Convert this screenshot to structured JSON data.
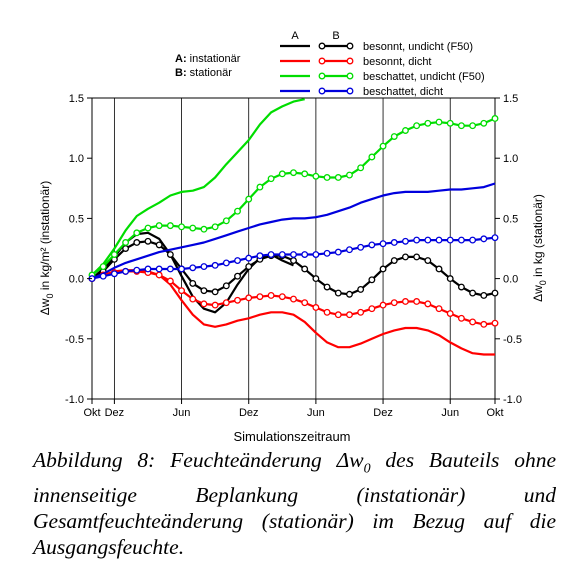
{
  "chart_data": {
    "type": "line",
    "xlabel": "Simulationszeitraum",
    "ylabel_left": "Δw",
    "ylabel_left_sub": "0",
    "ylabel_left_rest": " in kg/m² (instationär)",
    "ylabel_right": "Δw",
    "ylabel_right_sub": "0",
    "ylabel_right_rest": " in kg (stationär)",
    "x_ticks": [
      {
        "label": "Okt",
        "x": 0
      },
      {
        "label": "Dez",
        "x": 2
      },
      {
        "label": "Jun",
        "x": 8
      },
      {
        "label": "Dez",
        "x": 14
      },
      {
        "label": "Jun",
        "x": 20
      },
      {
        "label": "Dez",
        "x": 26
      },
      {
        "label": "Jun",
        "x": 32
      },
      {
        "label": "Okt",
        "x": 36
      }
    ],
    "xlim": [
      0,
      36
    ],
    "ylim": [
      -1.0,
      1.5
    ],
    "y_ticks": [
      "-1.0",
      "-0.5",
      "0.0",
      "0.5",
      "1.0",
      "1.5"
    ],
    "legend": {
      "header_a": "A",
      "header_b": "B",
      "key_a": "A:",
      "key_a_text": " instationär",
      "key_b": "B:",
      "key_b_text": " stationär",
      "entries": [
        {
          "label": "besonnt, undicht (F50)",
          "color": "#000000"
        },
        {
          "label": "besonnt, dicht",
          "color": "#ff0000"
        },
        {
          "label": "beschattet, undicht (F50)",
          "color": "#00dd00"
        },
        {
          "label": "beschattet, dicht",
          "color": "#0000dd"
        }
      ]
    },
    "series": [
      {
        "key": "A-besonnt-undicht",
        "marker": "none",
        "color": "#000000",
        "x": [
          0,
          1,
          2,
          3,
          4,
          5,
          6,
          7,
          8,
          9,
          10,
          11,
          12,
          13,
          14,
          15,
          16,
          17,
          18
        ],
        "y": [
          0.0,
          0.08,
          0.18,
          0.3,
          0.37,
          0.38,
          0.33,
          0.2,
          0.02,
          -0.15,
          -0.25,
          -0.28,
          -0.2,
          -0.05,
          0.08,
          0.17,
          0.2,
          0.15,
          0.11
        ]
      },
      {
        "key": "B-besonnt-undicht",
        "marker": "circle",
        "color": "#000000",
        "x": [
          0,
          1,
          2,
          3,
          4,
          5,
          6,
          7,
          8,
          9,
          10,
          11,
          12,
          13,
          14,
          15,
          16,
          17,
          18,
          19,
          20,
          21,
          22,
          23,
          24,
          25,
          26,
          27,
          28,
          29,
          30,
          31,
          32,
          33,
          34,
          35,
          36
        ],
        "y": [
          0.0,
          0.06,
          0.16,
          0.25,
          0.3,
          0.31,
          0.28,
          0.2,
          0.08,
          -0.04,
          -0.1,
          -0.11,
          -0.06,
          0.02,
          0.1,
          0.16,
          0.19,
          0.19,
          0.15,
          0.08,
          0.0,
          -0.07,
          -0.12,
          -0.13,
          -0.09,
          -0.01,
          0.08,
          0.15,
          0.18,
          0.18,
          0.15,
          0.08,
          0.0,
          -0.07,
          -0.12,
          -0.14,
          -0.12
        ]
      },
      {
        "key": "A-besonnt-dicht",
        "marker": "none",
        "color": "#ff0000",
        "x": [
          0,
          1,
          2,
          3,
          4,
          5,
          6,
          7,
          8,
          9,
          10,
          11,
          12,
          13,
          14,
          15,
          16,
          17,
          18,
          19,
          20,
          21,
          22,
          23,
          24,
          25,
          26,
          27,
          28,
          29,
          30,
          31,
          32,
          33,
          34,
          35,
          36
        ],
        "y": [
          0.0,
          0.03,
          0.06,
          0.07,
          0.07,
          0.06,
          0.03,
          -0.05,
          -0.18,
          -0.3,
          -0.38,
          -0.4,
          -0.38,
          -0.35,
          -0.33,
          -0.3,
          -0.28,
          -0.28,
          -0.3,
          -0.36,
          -0.45,
          -0.53,
          -0.57,
          -0.57,
          -0.54,
          -0.5,
          -0.46,
          -0.43,
          -0.41,
          -0.41,
          -0.43,
          -0.47,
          -0.53,
          -0.58,
          -0.62,
          -0.63,
          -0.63
        ]
      },
      {
        "key": "B-besonnt-dicht",
        "marker": "circle",
        "color": "#ff0000",
        "x": [
          0,
          1,
          2,
          3,
          4,
          5,
          6,
          7,
          8,
          9,
          10,
          11,
          12,
          13,
          14,
          15,
          16,
          17,
          18,
          19,
          20,
          21,
          22,
          23,
          24,
          25,
          26,
          27,
          28,
          29,
          30,
          31,
          32,
          33,
          34,
          35,
          36
        ],
        "y": [
          0.0,
          0.03,
          0.05,
          0.06,
          0.06,
          0.05,
          0.03,
          -0.02,
          -0.1,
          -0.17,
          -0.21,
          -0.22,
          -0.2,
          -0.18,
          -0.16,
          -0.15,
          -0.14,
          -0.15,
          -0.17,
          -0.2,
          -0.24,
          -0.28,
          -0.3,
          -0.3,
          -0.28,
          -0.25,
          -0.22,
          -0.2,
          -0.19,
          -0.19,
          -0.21,
          -0.25,
          -0.29,
          -0.33,
          -0.36,
          -0.38,
          -0.37
        ]
      },
      {
        "key": "A-beschattet-undicht",
        "marker": "none",
        "color": "#00dd00",
        "x": [
          0,
          1,
          2,
          3,
          4,
          5,
          6,
          7,
          8,
          9,
          10,
          11,
          12,
          13,
          14,
          15,
          16,
          17,
          18,
          19
        ],
        "y": [
          0.03,
          0.12,
          0.25,
          0.4,
          0.52,
          0.58,
          0.63,
          0.69,
          0.72,
          0.73,
          0.76,
          0.84,
          0.95,
          1.05,
          1.15,
          1.28,
          1.38,
          1.43,
          1.47,
          1.49
        ]
      },
      {
        "key": "B-beschattet-undicht",
        "marker": "circle",
        "color": "#00dd00",
        "x": [
          0,
          1,
          2,
          3,
          4,
          5,
          6,
          7,
          8,
          9,
          10,
          11,
          12,
          13,
          14,
          15,
          16,
          17,
          18,
          19,
          20,
          21,
          22,
          23,
          24,
          25,
          26,
          27,
          28,
          29,
          30,
          31,
          32,
          33,
          34,
          35,
          36
        ],
        "y": [
          0.03,
          0.1,
          0.2,
          0.3,
          0.38,
          0.42,
          0.44,
          0.44,
          0.43,
          0.42,
          0.41,
          0.43,
          0.48,
          0.56,
          0.66,
          0.76,
          0.83,
          0.87,
          0.88,
          0.87,
          0.85,
          0.84,
          0.84,
          0.86,
          0.92,
          1.01,
          1.1,
          1.18,
          1.23,
          1.27,
          1.29,
          1.3,
          1.29,
          1.27,
          1.27,
          1.29,
          1.33
        ]
      },
      {
        "key": "A-beschattet-dicht",
        "marker": "none",
        "color": "#0000dd",
        "x": [
          0,
          1,
          2,
          3,
          4,
          5,
          6,
          7,
          8,
          9,
          10,
          11,
          12,
          13,
          14,
          15,
          16,
          17,
          18,
          19,
          20,
          21,
          22,
          23,
          24,
          25,
          26,
          27,
          28,
          29,
          30,
          31,
          32,
          33,
          34,
          35,
          36
        ],
        "y": [
          0.0,
          0.04,
          0.09,
          0.13,
          0.16,
          0.19,
          0.22,
          0.24,
          0.26,
          0.28,
          0.3,
          0.33,
          0.36,
          0.39,
          0.42,
          0.45,
          0.47,
          0.49,
          0.5,
          0.5,
          0.51,
          0.53,
          0.56,
          0.59,
          0.63,
          0.66,
          0.69,
          0.71,
          0.72,
          0.72,
          0.72,
          0.73,
          0.74,
          0.74,
          0.75,
          0.76,
          0.79
        ]
      },
      {
        "key": "B-beschattet-dicht",
        "marker": "circle",
        "color": "#0000dd",
        "x": [
          0,
          1,
          2,
          3,
          4,
          5,
          6,
          7,
          8,
          9,
          10,
          11,
          12,
          13,
          14,
          15,
          16,
          17,
          18,
          19,
          20,
          21,
          22,
          23,
          24,
          25,
          26,
          27,
          28,
          29,
          30,
          31,
          32,
          33,
          34,
          35,
          36
        ],
        "y": [
          0.0,
          0.02,
          0.04,
          0.06,
          0.07,
          0.08,
          0.08,
          0.08,
          0.08,
          0.09,
          0.1,
          0.11,
          0.13,
          0.15,
          0.17,
          0.19,
          0.2,
          0.2,
          0.2,
          0.2,
          0.2,
          0.21,
          0.22,
          0.24,
          0.26,
          0.28,
          0.29,
          0.3,
          0.31,
          0.32,
          0.32,
          0.32,
          0.32,
          0.32,
          0.32,
          0.33,
          0.34
        ]
      }
    ]
  },
  "caption": {
    "pre": "Abbildung 8: Feuchteänderung Δw",
    "sub": "0",
    "post": " des Bauteils ohne innenseitige Beplankung (instationär) und Gesamtfeuchteänderung (stationär) im Bezug auf die Ausgangsfeuchte."
  }
}
